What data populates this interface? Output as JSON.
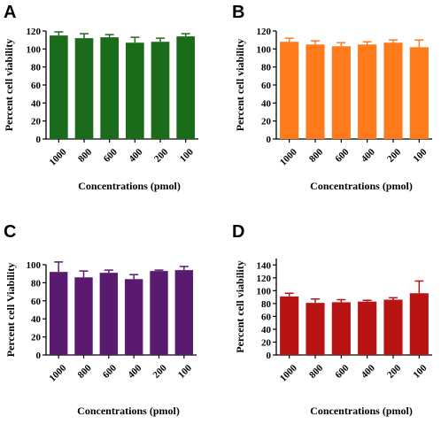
{
  "chart_data": [
    {
      "panel": "A",
      "type": "bar",
      "color": "#1a6b1a",
      "categories": [
        "1000",
        "800",
        "600",
        "400",
        "200",
        "100"
      ],
      "values": [
        115,
        112,
        113,
        107,
        108,
        114
      ],
      "errors": [
        4,
        5,
        3,
        6,
        4,
        3
      ],
      "ylim": [
        0,
        120
      ],
      "yticks": [
        0,
        20,
        40,
        60,
        80,
        100,
        120
      ],
      "ylabel": "Percent  cell viability",
      "xlabel": "Concentrations (pmol)"
    },
    {
      "panel": "B",
      "type": "bar",
      "color": "#ff7a1a",
      "categories": [
        "1000",
        "800",
        "600",
        "400",
        "200",
        "100"
      ],
      "values": [
        108,
        105,
        103,
        105,
        107,
        102
      ],
      "errors": [
        4,
        4,
        4,
        3,
        3,
        8
      ],
      "ylim": [
        0,
        120
      ],
      "yticks": [
        0,
        20,
        40,
        60,
        80,
        100,
        120
      ],
      "ylabel": "Percent  cell viability",
      "xlabel": "Concentrations (pmol)"
    },
    {
      "panel": "C",
      "type": "bar",
      "color": "#5a1a70",
      "categories": [
        "1000",
        "800",
        "600",
        "400",
        "200",
        "100"
      ],
      "values": [
        92,
        86,
        91,
        84,
        93,
        94
      ],
      "errors": [
        11,
        7,
        3,
        5,
        1,
        4
      ],
      "ylim": [
        0,
        100
      ],
      "yticks": [
        0,
        20,
        40,
        60,
        80,
        100
      ],
      "ylabel": "Percent cell Viability",
      "xlabel": "Concentrations (pmol)"
    },
    {
      "panel": "D",
      "type": "bar",
      "color": "#b81414",
      "categories": [
        "1000",
        "800",
        "600",
        "400",
        "200",
        "100"
      ],
      "values": [
        91,
        81,
        82,
        83,
        86,
        96
      ],
      "errors": [
        5,
        6,
        4,
        2,
        3,
        19
      ],
      "ylim": [
        0,
        150
      ],
      "yticks": [
        0,
        20,
        40,
        60,
        80,
        100,
        120,
        140
      ],
      "ylabel": "Percent  cell viability",
      "xlabel": "Concentrations (pmol)"
    }
  ]
}
